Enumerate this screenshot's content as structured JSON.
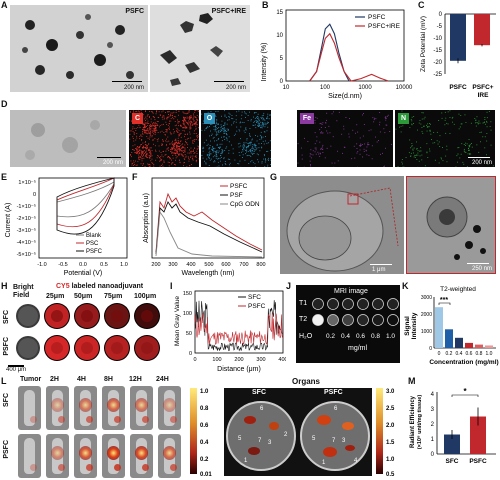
{
  "panels": {
    "A": "A",
    "B": "B",
    "C": "C",
    "D": "D",
    "E": "E",
    "F": "F",
    "G": "G",
    "H": "H",
    "I": "I",
    "J": "J",
    "K": "K",
    "L": "L",
    "M": "M"
  },
  "A": {
    "img1_label": "PSFC",
    "img2_label": "PSFC+IRE",
    "scale1": "200 nm",
    "scale2": "200 nm"
  },
  "B": {
    "ylabel": "Intensity (%)",
    "xlabel": "Size(d.nm)",
    "legend": [
      "PSFC",
      "PSFC+IRE"
    ],
    "yticks": [
      "15",
      "10",
      "5",
      "0"
    ],
    "xticks": [
      "10",
      "100",
      "1000",
      "10000"
    ]
  },
  "C": {
    "ylabel": "Zeta Potential (mV)",
    "yticks": [
      "0",
      "-5",
      "-10",
      "-15",
      "-20",
      "-25"
    ],
    "cat1": "PSFC",
    "cat2": "PSFC+",
    "cat2b": "IRE"
  },
  "D": {
    "scale1": "200 nm",
    "scale2": "200 nm",
    "tags": [
      "C",
      "O",
      "Fe",
      "N"
    ]
  },
  "E": {
    "ylabel": "Current (A)",
    "xlabel": "Potential (V)",
    "legend": [
      "Blank",
      "PSC",
      "PSFC"
    ],
    "yticks": [
      "1×10⁻⁵",
      "0",
      "-1×10⁻⁵",
      "-2×10⁻⁵",
      "-3×10⁻⁵",
      "-4×10⁻⁵",
      "-5×10⁻⁵"
    ],
    "xticks": [
      "-1.0",
      "-0.5",
      "0.0",
      "0.5",
      "1.0"
    ]
  },
  "F": {
    "ylabel": "Absorption (a.u)",
    "xlabel": "Wavelength (nm)",
    "legend": [
      "PSFC",
      "PSF",
      "CpG ODN"
    ],
    "xticks": [
      "200",
      "300",
      "400",
      "500",
      "600",
      "700",
      "800"
    ]
  },
  "G": {
    "scale1": "1 μm",
    "scale2": "250 nm"
  },
  "H": {
    "row1": "SFC",
    "row2": "PSFC",
    "col0a": "Bright",
    "col0b": "Field",
    "title_cy": "CY5",
    "title_rest": " labeled nanoadjuvant",
    "cols": [
      "25μm",
      "50μm",
      "75μm",
      "100μm"
    ],
    "scale": "400 μm"
  },
  "I": {
    "ylabel": "Mean Gray Value",
    "xlabel": "Distance (μm)",
    "legend": [
      "SFC",
      "PSFC"
    ],
    "yticks": [
      "150",
      "100",
      "50",
      "0"
    ],
    "xticks": [
      "0",
      "100",
      "200",
      "300",
      "400"
    ]
  },
  "J": {
    "title": "MRI image",
    "row1": "T1",
    "row2": "T2",
    "h2o": "H₂O",
    "concs": [
      "0.2",
      "0.4",
      "0.6",
      "0.8",
      "1.0"
    ],
    "unit": "mg/ml"
  },
  "K": {
    "title": "T2-weighted",
    "ylabel1": "Signal",
    "ylabel2": "Intensity",
    "xlabel": "Concentration (mg/ml)",
    "sig": "***",
    "xticks": [
      "0",
      "0.2",
      "0.4",
      "0.6",
      "0.8",
      "1.0"
    ],
    "yticks": [
      "3000",
      "2000",
      "1000",
      "0"
    ]
  },
  "L": {
    "row1": "SFC",
    "row2": "PSFC",
    "times": [
      "Tumor",
      "2H",
      "4H",
      "8H",
      "12H",
      "24H"
    ],
    "organs_title": "Organs",
    "dish1": "SFC",
    "dish2": "PSFC",
    "cb1": [
      "1.0",
      "0.8",
      "0.6",
      "0.4",
      "0.2",
      "0.01"
    ],
    "cb2": [
      "3.0",
      "2.5",
      "2.0",
      "1.5",
      "1.0",
      "0.5"
    ],
    "nums": [
      "1",
      "2",
      "3",
      "4",
      "5",
      "6",
      "7"
    ]
  },
  "M": {
    "ylabel1": "Radiant Efficiency",
    "ylabel2": "(×10⁸ unit/mg tissue)",
    "sig": "*",
    "cats": [
      "SFC",
      "PSFC"
    ],
    "yticks": [
      "4",
      "3",
      "2",
      "1",
      "0"
    ]
  },
  "chart_data": [
    {
      "type": "line",
      "title": "",
      "xlabel": "Size(d.nm)",
      "ylabel": "Intensity (%)",
      "x_scale": "log",
      "xlim": [
        10,
        10000
      ],
      "ylim": [
        0,
        15
      ],
      "series": [
        {
          "name": "PSFC",
          "x": [
            40,
            60,
            80,
            100,
            130,
            170,
            220,
            300,
            400
          ],
          "y": [
            0,
            2,
            7,
            11,
            12,
            10,
            6,
            2,
            0
          ]
        },
        {
          "name": "PSFC+IRE",
          "x": [
            40,
            60,
            80,
            100,
            130,
            170,
            220,
            300,
            450,
            800,
            1500,
            2500,
            4000
          ],
          "y": [
            0,
            2,
            6,
            9,
            10,
            8,
            5,
            2,
            0,
            0.5,
            1.4,
            0.6,
            0
          ]
        }
      ]
    },
    {
      "type": "bar",
      "xlabel": "",
      "ylabel": "Zeta Potential (mV)",
      "categories": [
        "PSFC",
        "PSFC+IRE"
      ],
      "values": [
        -19.5,
        -13
      ],
      "errors": [
        1.0,
        0.5
      ],
      "ylim": [
        -25,
        0
      ]
    },
    {
      "type": "bar",
      "xlabel": "Concentration (mg/ml)",
      "ylabel": "Signal Intensity",
      "title": "T2-weighted",
      "categories": [
        "0",
        "0.2",
        "0.4",
        "0.6",
        "0.8",
        "1.0"
      ],
      "values": [
        2400,
        1100,
        600,
        300,
        200,
        150
      ],
      "ylim": [
        0,
        3000
      ]
    },
    {
      "type": "bar",
      "xlabel": "",
      "ylabel": "Radiant Efficiency (×10⁸ unit/mg tissue)",
      "categories": [
        "SFC",
        "PSFC"
      ],
      "values": [
        1.3,
        2.5
      ],
      "errors": [
        0.3,
        0.6
      ],
      "ylim": [
        0,
        4
      ]
    }
  ],
  "colors": {
    "navy": "#1f3864",
    "red": "#c0282d",
    "cy5": "#d62728",
    "edx_C": "#e0302a",
    "edx_O": "#2b8fb8",
    "edx_Fe": "#8b3aa0",
    "edx_N": "#2d9a3a"
  }
}
